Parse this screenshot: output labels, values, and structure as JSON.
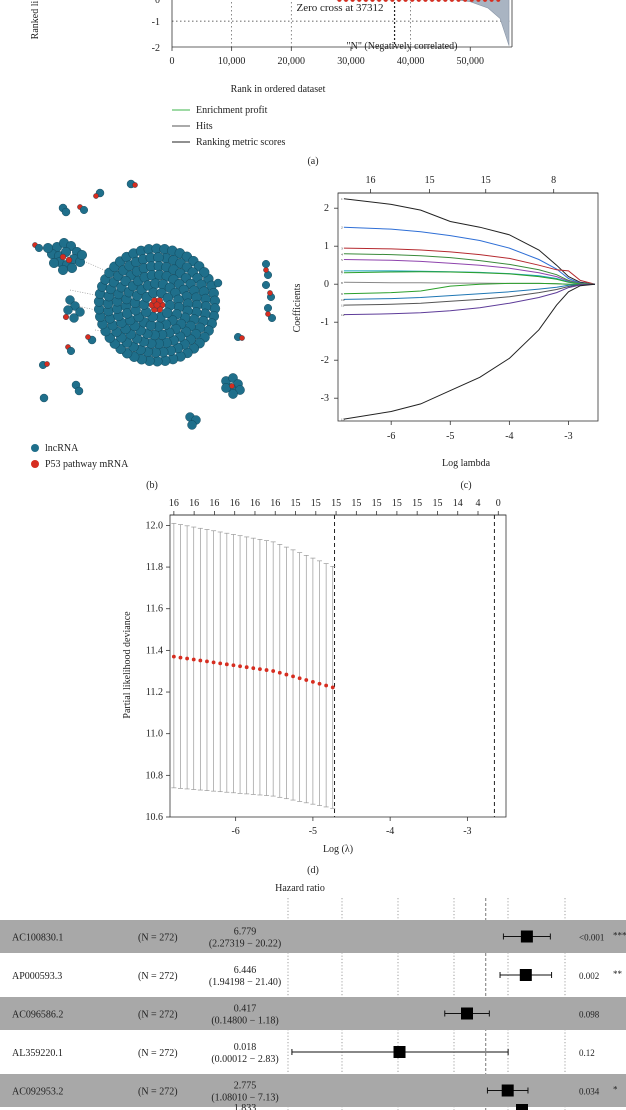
{
  "panel_a": {
    "ylabel_fragment": "Ranked li",
    "y_ticks": [
      "0",
      "-1",
      "-2"
    ],
    "x_ticks": [
      "0",
      "10,000",
      "20,000",
      "30,000",
      "40,000",
      "50,000"
    ],
    "xlabel": "Rank in ordered dataset",
    "zero_cross": "Zero cross at 37312",
    "neg_label": "\"N\" (Negatively correlated)",
    "legend": [
      {
        "label": "Enrichment profit",
        "color": "#3cb44b"
      },
      {
        "label": "Hits",
        "color": "#555555"
      },
      {
        "label": "Ranking metric scores",
        "color": "#222222"
      }
    ],
    "caption": "(a)",
    "chart_data": {
      "type": "area",
      "xlabel": "Rank in ordered dataset",
      "xlim": [
        0,
        57000
      ],
      "ylim": [
        -2,
        0.2
      ],
      "zero_cross": 37312,
      "x": [
        0,
        20000,
        37312,
        45000,
        50000,
        53000,
        55000,
        56500
      ],
      "y": [
        0.1,
        0.05,
        0,
        -0.1,
        -0.25,
        -0.5,
        -0.9,
        -1.95
      ]
    }
  },
  "panel_b": {
    "legend": [
      {
        "label": "lncRNA",
        "color": "#1f6f8b"
      },
      {
        "label": "P53 pathway mRNA",
        "color": "#d62d20"
      }
    ],
    "caption": "(b)"
  },
  "panel_c": {
    "top_ticks": [
      "16",
      "15",
      "15",
      "8"
    ],
    "y_ticks": [
      "2",
      "1",
      "0",
      "-1",
      "-2",
      "-3"
    ],
    "x_ticks": [
      "-6",
      "-5",
      "-4",
      "-3"
    ],
    "ylabel": "Coefficients",
    "xlabel": "Log lambda",
    "caption": "(c)",
    "chart_data": {
      "type": "line",
      "xlim": [
        -6.9,
        -2.5
      ],
      "ylim": [
        -3.6,
        2.4
      ],
      "x": [
        -6.8,
        -6.0,
        -5.5,
        -5.0,
        -4.5,
        -4.0,
        -3.5,
        -3.2,
        -3.0,
        -2.8,
        -2.55
      ],
      "series": [
        {
          "color": "#222222",
          "values": [
            2.25,
            2.1,
            1.95,
            1.65,
            1.5,
            1.3,
            0.9,
            0.5,
            0.2,
            0.05,
            0
          ]
        },
        {
          "color": "#2f6fd6",
          "values": [
            1.5,
            1.45,
            1.38,
            1.28,
            1.15,
            0.95,
            0.65,
            0.4,
            0.15,
            0.03,
            0
          ]
        },
        {
          "color": "#b5292f",
          "values": [
            0.95,
            0.93,
            0.9,
            0.85,
            0.78,
            0.68,
            0.5,
            0.38,
            0.35,
            0.1,
            0
          ]
        },
        {
          "color": "#3a8a3a",
          "values": [
            0.8,
            0.78,
            0.75,
            0.7,
            0.62,
            0.52,
            0.38,
            0.25,
            0.1,
            0.02,
            0
          ]
        },
        {
          "color": "#8e44ad",
          "values": [
            0.65,
            0.63,
            0.6,
            0.55,
            0.5,
            0.42,
            0.3,
            0.2,
            0.08,
            0.02,
            0
          ]
        },
        {
          "color": "#17a2b8",
          "values": [
            0.35,
            0.35,
            0.34,
            0.33,
            0.31,
            0.28,
            0.22,
            0.15,
            0.06,
            0.01,
            0
          ]
        },
        {
          "color": "#2ca02c",
          "values": [
            0.3,
            0.32,
            0.33,
            0.32,
            0.3,
            0.27,
            0.2,
            0.13,
            0.05,
            0.01,
            0
          ]
        },
        {
          "color": "#888888",
          "values": [
            0.05,
            0.04,
            0.04,
            0.03,
            0.03,
            0.02,
            0.02,
            0.01,
            0.0,
            0.0,
            0
          ]
        },
        {
          "color": "#2ca02c",
          "values": [
            -0.25,
            -0.22,
            -0.18,
            -0.05,
            0.0,
            0.02,
            0.02,
            0.01,
            0.0,
            0.0,
            0
          ]
        },
        {
          "color": "#1f77b4",
          "values": [
            -0.4,
            -0.38,
            -0.35,
            -0.3,
            -0.25,
            -0.2,
            -0.13,
            -0.08,
            -0.03,
            -0.01,
            0
          ]
        },
        {
          "color": "#555555",
          "values": [
            -0.55,
            -0.53,
            -0.5,
            -0.45,
            -0.4,
            -0.33,
            -0.22,
            -0.14,
            -0.06,
            -0.01,
            0
          ]
        },
        {
          "color": "#5e3c99",
          "values": [
            -0.8,
            -0.78,
            -0.75,
            -0.7,
            -0.62,
            -0.5,
            -0.35,
            -0.22,
            -0.09,
            -0.02,
            0
          ]
        },
        {
          "color": "#222222",
          "values": [
            -3.55,
            -3.35,
            -3.15,
            -2.8,
            -2.45,
            -1.95,
            -1.2,
            -0.55,
            -0.2,
            -0.04,
            0
          ]
        }
      ]
    }
  },
  "panel_d": {
    "top_ticks": [
      "16",
      "16",
      "16",
      "16",
      "16",
      "16",
      "15",
      "15",
      "15",
      "15",
      "15",
      "15",
      "15",
      "15",
      "14",
      "4",
      "0"
    ],
    "y_ticks": [
      "12.0",
      "11.8",
      "11.6",
      "11.4",
      "11.2",
      "11.0",
      "10.8",
      "10.6"
    ],
    "x_ticks": [
      "-6",
      "-5",
      "-4",
      "-3"
    ],
    "ylabel": "Partial likelihood deviance",
    "xlabel": "Log (λ)",
    "caption": "(d)",
    "chart_data": {
      "type": "scatter",
      "xlim": [
        -6.85,
        -2.5
      ],
      "ylim": [
        10.6,
        12.05
      ],
      "vlines": [
        -4.72,
        -2.65
      ],
      "x_range": [
        -6.8,
        -2.6
      ],
      "n_points": 50,
      "center_at": {
        "-6.8": 11.37,
        "-5.5": 11.3,
        "-4.72": 11.22,
        "-4.0": 11.3,
        "-3.0": 11.53,
        "-2.6": 11.5
      },
      "upper_at": {
        "-6.8": 12.01,
        "-5.5": 11.92,
        "-4.72": 11.8,
        "-4.0": 11.82,
        "-3.0": 11.97,
        "-2.6": 11.92
      },
      "lower_at": {
        "-6.8": 10.74,
        "-5.5": 10.7,
        "-4.72": 10.64,
        "-4.0": 10.79,
        "-3.0": 11.1,
        "-2.6": 11.08
      }
    }
  },
  "panel_e": {
    "title": "Hazard ratio",
    "rows": [
      {
        "gene": "AC100830.1",
        "n": "(N = 272)",
        "hr": "6.779",
        "ci": "(2.27319 − 20.22)",
        "p": "<0.001",
        "stars": "***",
        "shaded": true,
        "est": 6.779,
        "lo": 2.27319,
        "hi": 20.22
      },
      {
        "gene": "AP000593.3",
        "n": "(N = 272)",
        "hr": "6.446",
        "ci": "(1.94198 − 21.40)",
        "p": "0.002",
        "stars": "**",
        "shaded": false,
        "est": 6.446,
        "lo": 1.94198,
        "hi": 21.4
      },
      {
        "gene": "AC096586.2",
        "n": "(N = 272)",
        "hr": "0.417",
        "ci": "(0.14800 − 1.18)",
        "p": "0.098",
        "stars": "",
        "shaded": true,
        "est": 0.417,
        "lo": 0.148,
        "hi": 1.18
      },
      {
        "gene": "AL359220.1",
        "n": "(N = 272)",
        "hr": "0.018",
        "ci": "(0.00012 − 2.83)",
        "p": "0.12",
        "stars": "",
        "shaded": false,
        "est": 0.018,
        "lo": 0.00012,
        "hi": 2.83
      },
      {
        "gene": "AC092953.2",
        "n": "(N = 272)",
        "hr": "2.775",
        "ci": "(1.08010 − 7.13)",
        "p": "0.034",
        "stars": "*",
        "shaded": true,
        "est": 2.775,
        "lo": 1.0801,
        "hi": 7.13
      }
    ],
    "partial_next_value": "1.833"
  }
}
